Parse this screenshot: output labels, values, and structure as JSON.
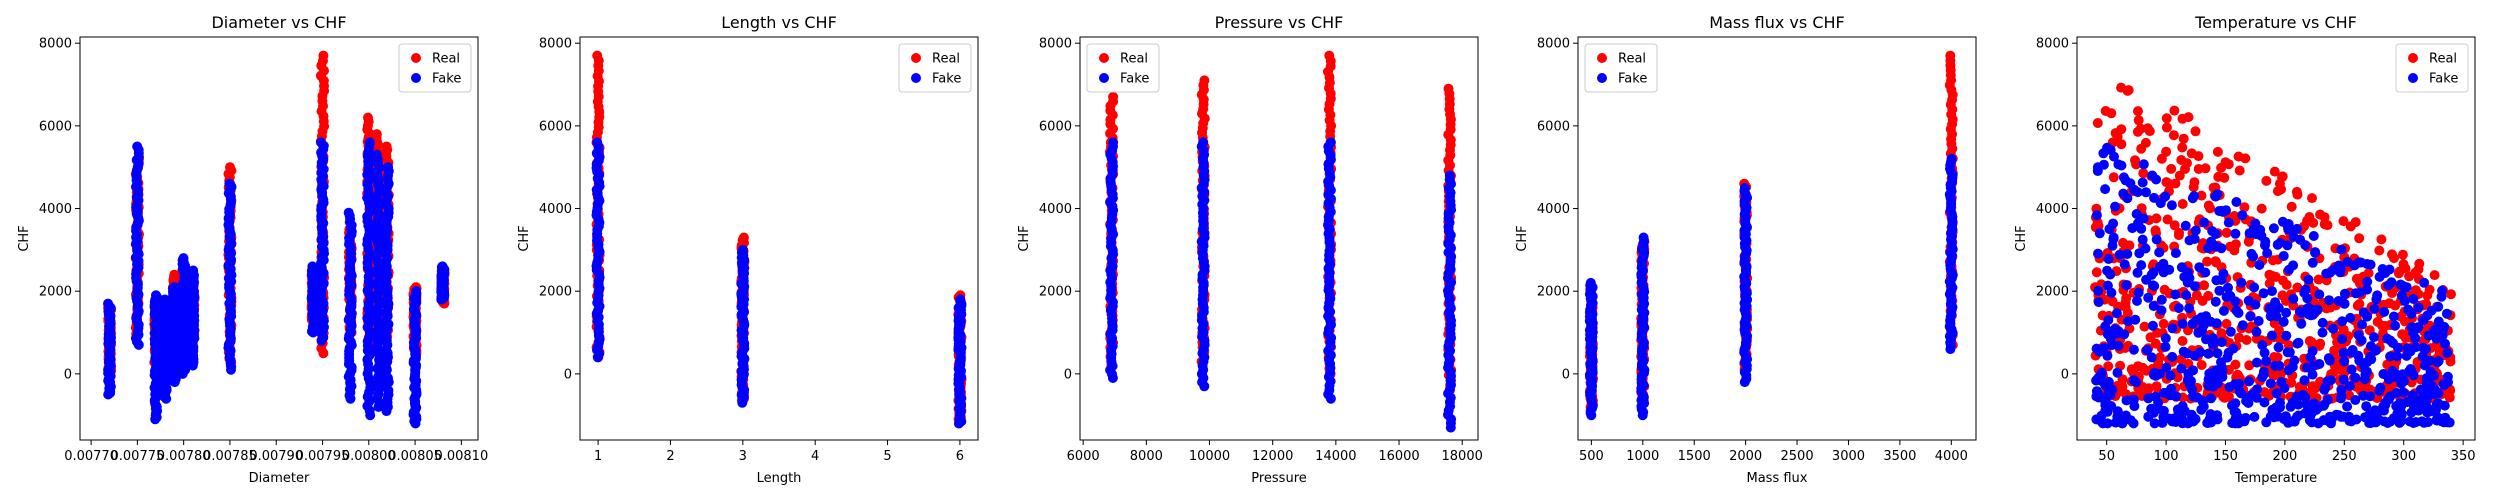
{
  "figure": {
    "background": "#ffffff"
  },
  "colors": {
    "real": "#ff0000",
    "fake": "#0000ff"
  },
  "chart_data": [
    {
      "type": "scatter",
      "title": "Diameter vs CHF",
      "xlabel": "Diameter",
      "ylabel": "CHF",
      "xlim": [
        0.007688,
        0.008118
      ],
      "ylim": [
        -1600,
        8150
      ],
      "xticks": [
        0.0077,
        0.00775,
        0.0078,
        0.00785,
        0.0079,
        0.00795,
        0.008,
        0.00805,
        0.0081
      ],
      "xtick_labels": [
        "0.00770",
        "0.00775",
        "0.00780",
        "0.00785",
        "0.00790",
        "0.00795",
        "0.00800",
        "0.00805",
        "0.00810"
      ],
      "yticks": [
        0,
        2000,
        4000,
        6000,
        8000
      ],
      "legend": {
        "placement": "top-right",
        "entries": [
          "Real",
          "Fake"
        ]
      },
      "series": [
        {
          "name": "Real",
          "color": "#ff0000",
          "clusters": [
            {
              "x": 0.00772,
              "y": [
                0,
                1600
              ]
            },
            {
              "x": 0.00775,
              "y": [
                900,
                5200
              ]
            },
            {
              "x": 0.00777,
              "y": [
                200,
                1800
              ]
            },
            {
              "x": 0.00778,
              "y": [
                300,
                1700
              ]
            },
            {
              "x": 0.00779,
              "y": [
                400,
                2400
              ]
            },
            {
              "x": 0.0078,
              "y": [
                500,
                2500
              ]
            },
            {
              "x": 0.00781,
              "y": [
                600,
                2200
              ]
            },
            {
              "x": 0.00785,
              "y": [
                200,
                5000
              ]
            },
            {
              "x": 0.00794,
              "y": [
                1200,
                2500
              ]
            },
            {
              "x": 0.00795,
              "y": [
                500,
                7700
              ]
            },
            {
              "x": 0.00798,
              "y": [
                1000,
                3500
              ]
            },
            {
              "x": 0.008,
              "y": [
                500,
                6200
              ]
            },
            {
              "x": 0.00801,
              "y": [
                800,
                5800
              ]
            },
            {
              "x": 0.00802,
              "y": [
                900,
                5500
              ]
            },
            {
              "x": 0.00805,
              "y": [
                500,
                2100
              ]
            },
            {
              "x": 0.00808,
              "y": [
                1700,
                2500
              ]
            }
          ]
        },
        {
          "name": "Fake",
          "color": "#0000ff",
          "clusters": [
            {
              "x": 0.00772,
              "y": [
                -500,
                1700
              ]
            },
            {
              "x": 0.00775,
              "y": [
                700,
                5500
              ]
            },
            {
              "x": 0.00777,
              "y": [
                -1100,
                1900
              ]
            },
            {
              "x": 0.00778,
              "y": [
                -600,
                1800
              ]
            },
            {
              "x": 0.00779,
              "y": [
                -200,
                2100
              ]
            },
            {
              "x": 0.0078,
              "y": [
                0,
                2800
              ]
            },
            {
              "x": 0.00781,
              "y": [
                200,
                2500
              ]
            },
            {
              "x": 0.00785,
              "y": [
                100,
                4600
              ]
            },
            {
              "x": 0.00794,
              "y": [
                1000,
                2600
              ]
            },
            {
              "x": 0.00795,
              "y": [
                800,
                5600
              ]
            },
            {
              "x": 0.00798,
              "y": [
                -600,
                3900
              ]
            },
            {
              "x": 0.008,
              "y": [
                -1000,
                5600
              ]
            },
            {
              "x": 0.00801,
              "y": [
                -800,
                5300
              ]
            },
            {
              "x": 0.00802,
              "y": [
                -900,
                5000
              ]
            },
            {
              "x": 0.00805,
              "y": [
                -1200,
                2000
              ]
            },
            {
              "x": 0.00808,
              "y": [
                1800,
                2600
              ]
            }
          ]
        }
      ]
    },
    {
      "type": "scatter",
      "title": "Length vs CHF",
      "xlabel": "Length",
      "ylabel": "CHF",
      "xlim": [
        0.75,
        6.25
      ],
      "ylim": [
        -1600,
        8150
      ],
      "xticks": [
        1,
        2,
        3,
        4,
        5,
        6
      ],
      "xtick_labels": [
        "1",
        "2",
        "3",
        "4",
        "5",
        "6"
      ],
      "yticks": [
        0,
        2000,
        4000,
        6000,
        8000
      ],
      "legend": {
        "placement": "top-right",
        "entries": [
          "Real",
          "Fake"
        ]
      },
      "series": [
        {
          "name": "Real",
          "color": "#ff0000",
          "clusters": [
            {
              "x": 1,
              "y": [
                400,
                7700
              ]
            },
            {
              "x": 3,
              "y": [
                -600,
                3300
              ]
            },
            {
              "x": 6,
              "y": [
                -1100,
                1900
              ]
            }
          ]
        },
        {
          "name": "Fake",
          "color": "#0000ff",
          "clusters": [
            {
              "x": 1,
              "y": [
                400,
                5600
              ]
            },
            {
              "x": 3,
              "y": [
                -700,
                3000
              ]
            },
            {
              "x": 6,
              "y": [
                -1200,
                1800
              ]
            }
          ]
        }
      ]
    },
    {
      "type": "scatter",
      "title": "Pressure vs CHF",
      "xlabel": "Pressure",
      "ylabel": "CHF",
      "xlim": [
        5900,
        18500
      ],
      "ylim": [
        -1600,
        8150
      ],
      "xticks": [
        6000,
        8000,
        10000,
        12000,
        14000,
        16000,
        18000
      ],
      "xtick_labels": [
        "6000",
        "8000",
        "10000",
        "12000",
        "14000",
        "16000",
        "18000"
      ],
      "yticks": [
        0,
        2000,
        4000,
        6000,
        8000
      ],
      "legend": {
        "placement": "top-left",
        "entries": [
          "Real",
          "Fake"
        ]
      },
      "series": [
        {
          "name": "Real",
          "color": "#ff0000",
          "clusters": [
            {
              "x": 6900,
              "y": [
                200,
                6700
              ]
            },
            {
              "x": 9800,
              "y": [
                300,
                7100
              ]
            },
            {
              "x": 13800,
              "y": [
                0,
                7700
              ]
            },
            {
              "x": 17600,
              "y": [
                -400,
                6900
              ]
            }
          ]
        },
        {
          "name": "Fake",
          "color": "#0000ff",
          "clusters": [
            {
              "x": 6900,
              "y": [
                -100,
                5600
              ]
            },
            {
              "x": 9800,
              "y": [
                -300,
                5600
              ]
            },
            {
              "x": 13800,
              "y": [
                -600,
                5600
              ]
            },
            {
              "x": 17600,
              "y": [
                -1300,
                4800
              ]
            }
          ]
        }
      ]
    },
    {
      "type": "scatter",
      "title": "Mass flux vs CHF",
      "xlabel": "Mass flux",
      "ylabel": "CHF",
      "xlim": [
        370,
        4240
      ],
      "ylim": [
        -1600,
        8150
      ],
      "xticks": [
        500,
        1000,
        1500,
        2000,
        2500,
        3000,
        3500,
        4000
      ],
      "xtick_labels": [
        "500",
        "1000",
        "1500",
        "2000",
        "2500",
        "3000",
        "3500",
        "4000"
      ],
      "yticks": [
        0,
        2000,
        4000,
        6000,
        8000
      ],
      "legend": {
        "placement": "top-left",
        "entries": [
          "Real",
          "Fake"
        ]
      },
      "series": [
        {
          "name": "Real",
          "color": "#ff0000",
          "clusters": [
            {
              "x": 500,
              "y": [
                -800,
                2100
              ]
            },
            {
              "x": 1000,
              "y": [
                -700,
                3200
              ]
            },
            {
              "x": 2000,
              "y": [
                100,
                4600
              ]
            },
            {
              "x": 4000,
              "y": [
                700,
                7700
              ]
            }
          ]
        },
        {
          "name": "Fake",
          "color": "#0000ff",
          "clusters": [
            {
              "x": 500,
              "y": [
                -1000,
                2200
              ]
            },
            {
              "x": 1000,
              "y": [
                -1000,
                3300
              ]
            },
            {
              "x": 2000,
              "y": [
                -200,
                4500
              ]
            },
            {
              "x": 4000,
              "y": [
                600,
                5200
              ]
            }
          ]
        }
      ]
    },
    {
      "type": "scatter",
      "title": "Temperature vs CHF",
      "xlabel": "Temperature",
      "ylabel": "CHF",
      "xlim": [
        25,
        360
      ],
      "ylim": [
        -1600,
        8150
      ],
      "xticks": [
        50,
        100,
        150,
        200,
        250,
        300,
        350
      ],
      "xtick_labels": [
        "50",
        "100",
        "150",
        "200",
        "250",
        "300",
        "350"
      ],
      "yticks": [
        0,
        2000,
        4000,
        6000,
        8000
      ],
      "legend": {
        "placement": "top-right",
        "entries": [
          "Real",
          "Fake"
        ]
      },
      "series": [
        {
          "name": "Real",
          "color": "#ff0000",
          "trend": {
            "x": [
              40,
              340
            ],
            "upper": [
              7700,
              2200
            ],
            "lower": [
              -600,
              -600
            ]
          }
        },
        {
          "name": "Fake",
          "color": "#0000ff",
          "trend": {
            "x": [
              40,
              340
            ],
            "upper": [
              5600,
              2000
            ],
            "lower": [
              -1200,
              -1200
            ]
          }
        }
      ]
    }
  ]
}
